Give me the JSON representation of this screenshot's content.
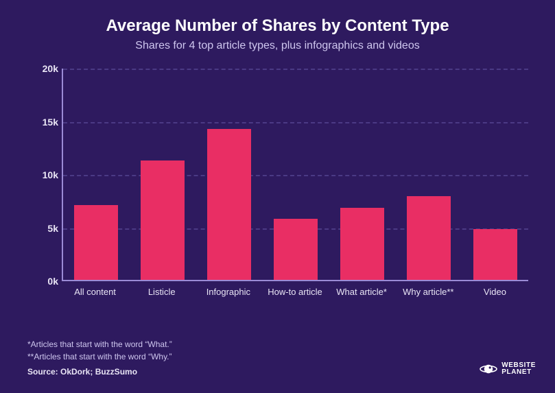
{
  "title": "Average Number of Shares by Content Type",
  "title_fontsize": 24,
  "subtitle": "Shares for 4 top article types, plus infographics and videos",
  "subtitle_fontsize": 16,
  "chart": {
    "type": "bar",
    "categories": [
      "All content",
      "Listicle",
      "Infographic",
      "How-to article",
      "What article*",
      "Why article**",
      "Video"
    ],
    "values": [
      7100,
      11300,
      14300,
      5800,
      6800,
      7900,
      4800
    ],
    "bar_color": "#e92e64",
    "bar_width": 0.66,
    "ymin": 0,
    "ymax": 20000,
    "ytick_positions": [
      0,
      5000,
      10000,
      15000,
      20000
    ],
    "ytick_labels": [
      "0k",
      "5k",
      "10k",
      "15k",
      "20k"
    ],
    "grid_color": "#4b3a85",
    "axis_color": "#9b8bd6",
    "background_color": "#2e1a5f",
    "label_fontsize": 13,
    "ytick_fontsize": 14
  },
  "footnote1": "*Articles that start with the word “What.”",
  "footnote2": "**Articles that start with the word “Why.”",
  "source": "Source: OkDork; BuzzSumo",
  "brand_line1": "WEBSITE",
  "brand_line2": "PLANET"
}
